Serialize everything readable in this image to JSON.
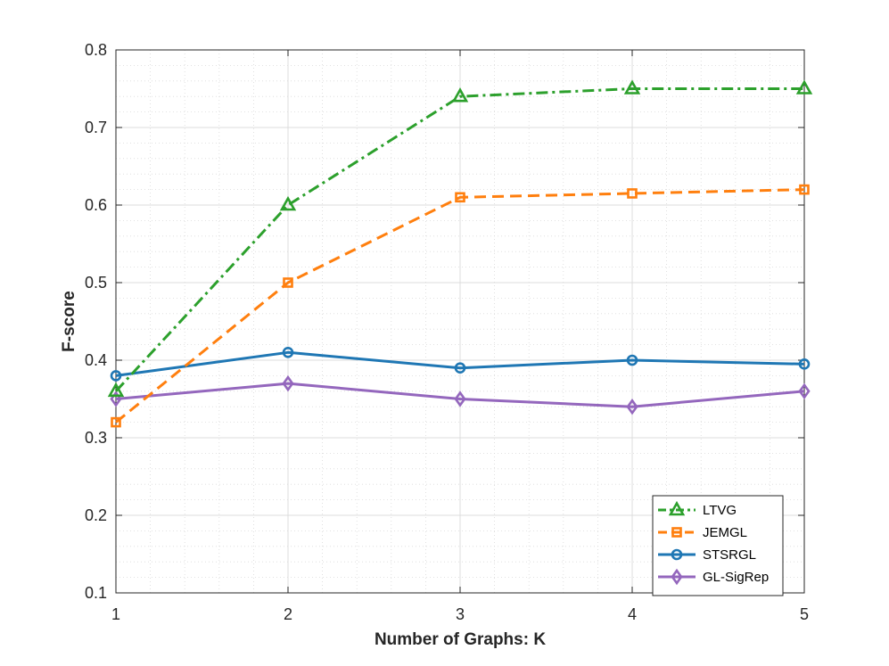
{
  "chart_data": {
    "type": "line",
    "title": "",
    "xlabel": "Number of Graphs: K",
    "ylabel": "F-score",
    "x": [
      1,
      2,
      3,
      4,
      5
    ],
    "xlim": [
      1,
      5
    ],
    "ylim": [
      0.1,
      0.8
    ],
    "xticks": [
      "1",
      "2",
      "3",
      "4",
      "5"
    ],
    "yticks": [
      "0.1",
      "0.2",
      "0.3",
      "0.4",
      "0.5",
      "0.6",
      "0.7",
      "0.8"
    ],
    "grid": true,
    "minor_grid": true,
    "legend_position": "bottom-right",
    "series": [
      {
        "name": "LTVG",
        "values": [
          0.36,
          0.6,
          0.74,
          0.75,
          0.75
        ],
        "color": "#2ca02c",
        "marker": "triangle",
        "dash": "dashdot"
      },
      {
        "name": "JEMGL",
        "values": [
          0.32,
          0.5,
          0.61,
          0.615,
          0.62
        ],
        "color": "#ff7f0e",
        "marker": "square",
        "dash": "dashed"
      },
      {
        "name": "STSRGL",
        "values": [
          0.38,
          0.41,
          0.39,
          0.4,
          0.395
        ],
        "color": "#1f77b4",
        "marker": "circle",
        "dash": "solid"
      },
      {
        "name": "GL-SigRep",
        "values": [
          0.35,
          0.37,
          0.35,
          0.34,
          0.36
        ],
        "color": "#9467bd",
        "marker": "diamond",
        "dash": "solid"
      }
    ]
  }
}
